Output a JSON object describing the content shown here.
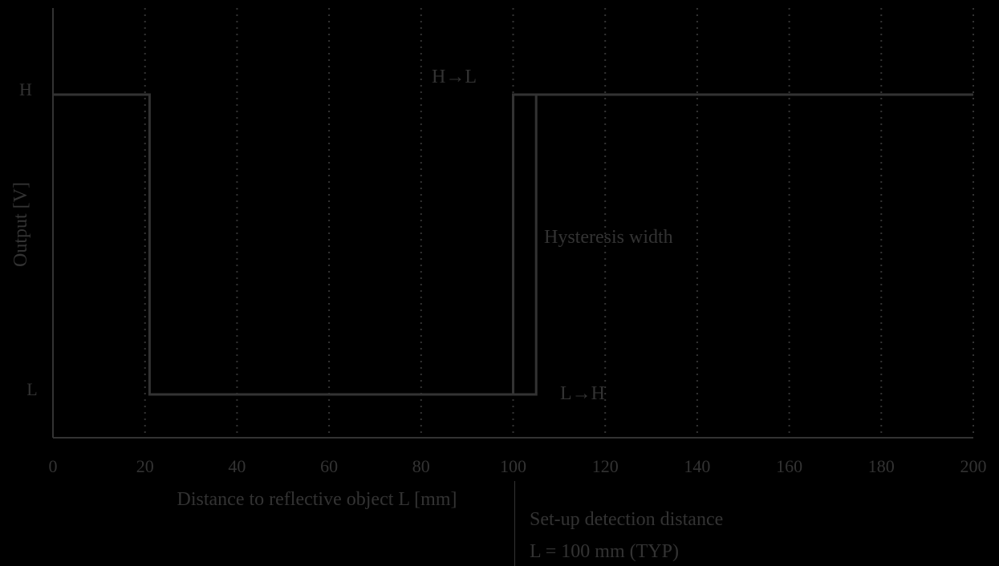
{
  "colors": {
    "background": "#000000",
    "foreground": "#333333"
  },
  "chart_data": {
    "type": "line",
    "title": "",
    "xlabel": "Distance to reflective object  L [mm]",
    "ylabel": "Output  [V]",
    "xlim": [
      0,
      200
    ],
    "x_ticks": [
      0,
      20,
      40,
      60,
      80,
      100,
      120,
      140,
      160,
      180,
      200
    ],
    "x_tick_labels": [
      "0",
      "20",
      "40",
      "60",
      "80",
      "100",
      "120",
      "140",
      "160",
      "180",
      "200"
    ],
    "y_levels": [
      {
        "key": "L",
        "label": "L"
      },
      {
        "key": "H",
        "label": "H"
      }
    ],
    "grid": "vertical dotted at each x tick",
    "series": [
      {
        "direction": "H→L",
        "points": [
          [
            0,
            "H"
          ],
          [
            21,
            "H"
          ],
          [
            21,
            "L"
          ],
          [
            100,
            "L"
          ],
          [
            100,
            "H"
          ],
          [
            200,
            "H"
          ]
        ]
      },
      {
        "direction": "L→H",
        "points": [
          [
            21,
            "L"
          ],
          [
            105,
            "L"
          ],
          [
            105,
            "H"
          ],
          [
            200,
            "H"
          ]
        ]
      }
    ],
    "annotations": {
      "h_to_l": "H→L",
      "l_to_h": "L→H",
      "hysteresis": "Hysteresis width",
      "setup_line1": "Set-up detection distance",
      "setup_line2": "L = 100 mm (TYP)"
    }
  }
}
